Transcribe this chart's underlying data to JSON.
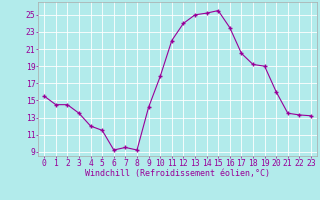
{
  "x": [
    0,
    1,
    2,
    3,
    4,
    5,
    6,
    7,
    8,
    9,
    10,
    11,
    12,
    13,
    14,
    15,
    16,
    17,
    18,
    19,
    20,
    21,
    22,
    23
  ],
  "y": [
    15.5,
    14.5,
    14.5,
    13.5,
    12.0,
    11.5,
    9.2,
    9.5,
    9.2,
    14.2,
    17.8,
    22.0,
    24.0,
    25.0,
    25.2,
    25.5,
    23.5,
    20.5,
    19.2,
    19.0,
    16.0,
    13.5,
    13.3,
    13.2
  ],
  "line_color": "#990099",
  "marker_color": "#990099",
  "bg_color": "#b2ebeb",
  "grid_color": "#c8e8e8",
  "xlabel": "Windchill (Refroidissement éolien,°C)",
  "xlim": [
    -0.5,
    23.5
  ],
  "ylim": [
    8.5,
    26.5
  ],
  "xticks": [
    0,
    1,
    2,
    3,
    4,
    5,
    6,
    7,
    8,
    9,
    10,
    11,
    12,
    13,
    14,
    15,
    16,
    17,
    18,
    19,
    20,
    21,
    22,
    23
  ],
  "yticks": [
    9,
    11,
    13,
    15,
    17,
    19,
    21,
    23,
    25
  ],
  "tick_color": "#990099",
  "label_fontsize": 6.0,
  "tick_fontsize": 5.8,
  "spine_color": "#aaaaaa"
}
